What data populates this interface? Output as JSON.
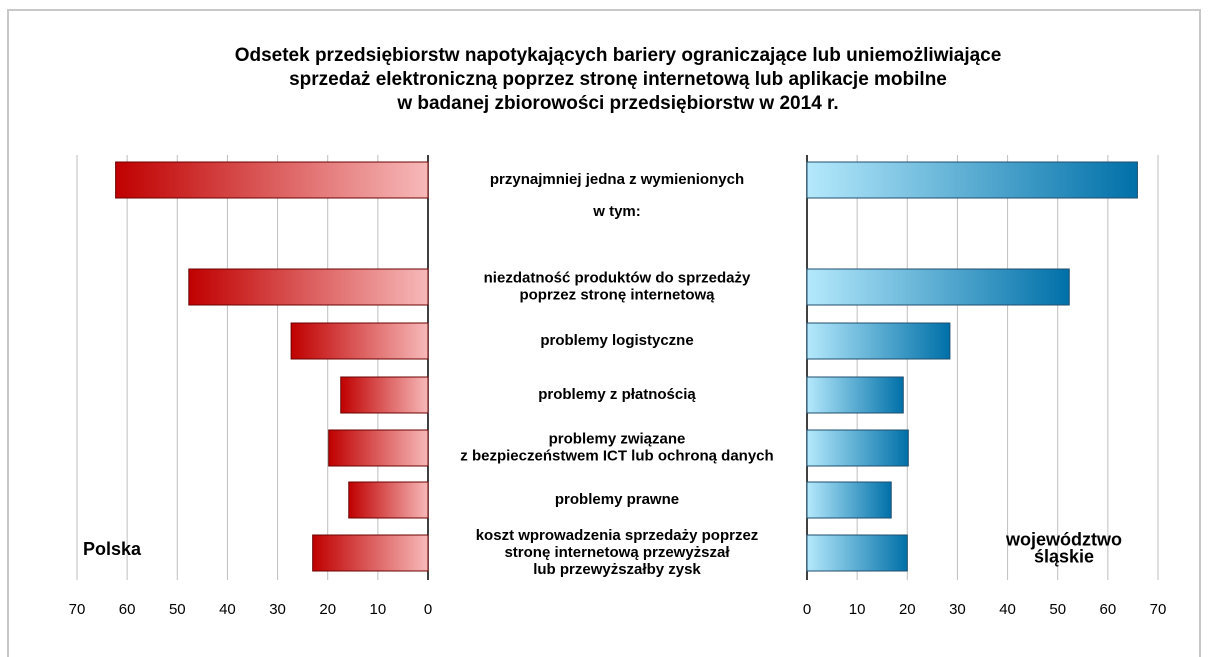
{
  "chart_data": {
    "type": "butterfly",
    "title": "Odsetek przedsiębiorstw napotykających bariery ograniczające lub uniemożliwiające\nsprzedaż elektroniczną poprzez stronę internetową lub aplikacje mobilne\nw badanej zbiorowości przedsiębiorstw w 2014 r.",
    "categories": [
      "przynajmniej jedna z wymienionych",
      "w tym:",
      "niezdatność produktów  do sprzedaży\npoprzez stronę internetową",
      "problemy logistyczne",
      "problemy z płatnością",
      "problemy związane\nz bezpieczeństwem ICT lub ochroną danych",
      "problemy prawne",
      "koszt wprowadzenia sprzedaży poprzez\nstronę internetową przewyższał\nlub przewyższałby zysk"
    ],
    "series": [
      {
        "name": "Polska",
        "color": [
          "#c00000",
          "#f7b9b9"
        ],
        "values": [
          62.3,
          null,
          47.7,
          27.3,
          17.4,
          19.8,
          15.8,
          23
        ]
      },
      {
        "name": "województwo\nśląskie",
        "color": [
          "#b5e9fc",
          "#0070a8"
        ],
        "values": [
          65.9,
          null,
          52.3,
          28.5,
          19.2,
          20.2,
          16.8,
          20
        ]
      }
    ],
    "xlim": [
      0,
      70
    ],
    "xticks": [
      0,
      10,
      20,
      30,
      40,
      50,
      60,
      70
    ],
    "grid": true
  }
}
